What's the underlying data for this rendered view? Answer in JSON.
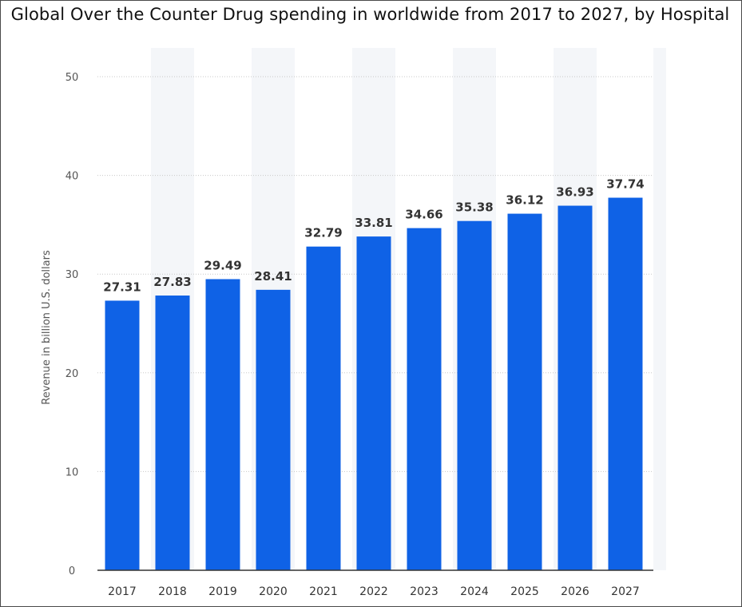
{
  "chart_data": {
    "type": "bar",
    "title": "Global Over the Counter Drug spending in worldwide from 2017 to 2027, by Hospital",
    "xlabel": "",
    "ylabel": "Revenue in billion U.S. dollars",
    "categories": [
      "2017",
      "2018",
      "2019",
      "2020",
      "2021",
      "2022",
      "2023",
      "2024",
      "2025",
      "2026",
      "2027"
    ],
    "values": [
      27.31,
      27.83,
      29.49,
      28.41,
      32.79,
      33.81,
      34.66,
      35.38,
      36.12,
      36.93,
      37.74
    ],
    "value_labels": [
      "27.31",
      "27.83",
      "29.49",
      "28.41",
      "32.79",
      "33.81",
      "34.66",
      "35.38",
      "36.12",
      "36.93",
      "37.74"
    ],
    "ylim": [
      0,
      50
    ],
    "yticks": [
      "0",
      "10",
      "20",
      "30",
      "40",
      "50"
    ],
    "grid": true,
    "bar_color": "#0f62e6",
    "column_band_color": "#f4f6f9"
  }
}
